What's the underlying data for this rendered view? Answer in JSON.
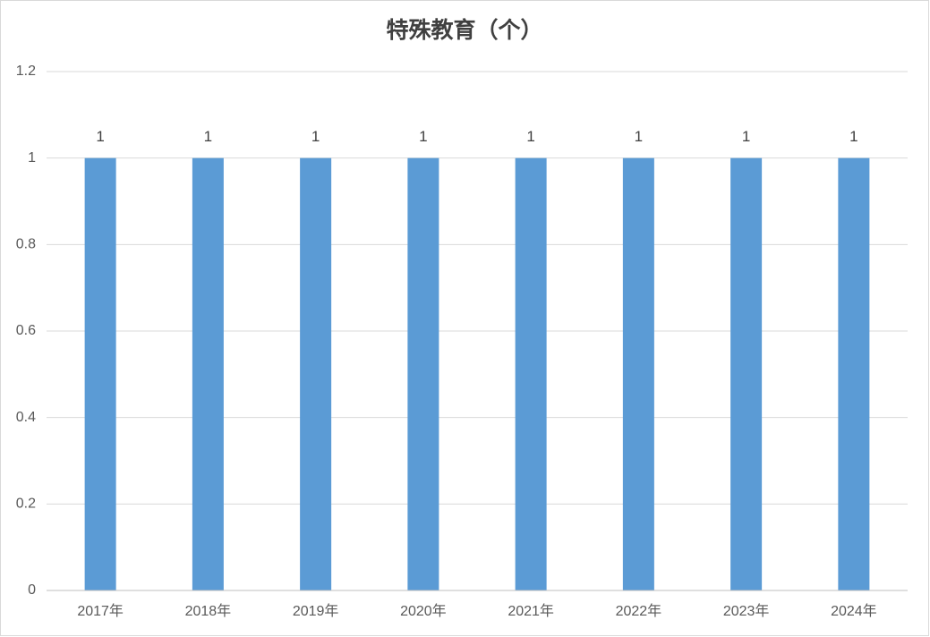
{
  "chart_data": {
    "type": "bar",
    "title": "特殊教育（个）",
    "categories": [
      "2017年",
      "2018年",
      "2019年",
      "2020年",
      "2021年",
      "2022年",
      "2023年",
      "2024年"
    ],
    "values": [
      1,
      1,
      1,
      1,
      1,
      1,
      1,
      1
    ],
    "color": "#5b9bd5",
    "ylim": [
      0,
      1.2
    ],
    "yticks": [
      0,
      0.2,
      0.4,
      0.6,
      0.8,
      1,
      1.2
    ],
    "grid": true
  }
}
